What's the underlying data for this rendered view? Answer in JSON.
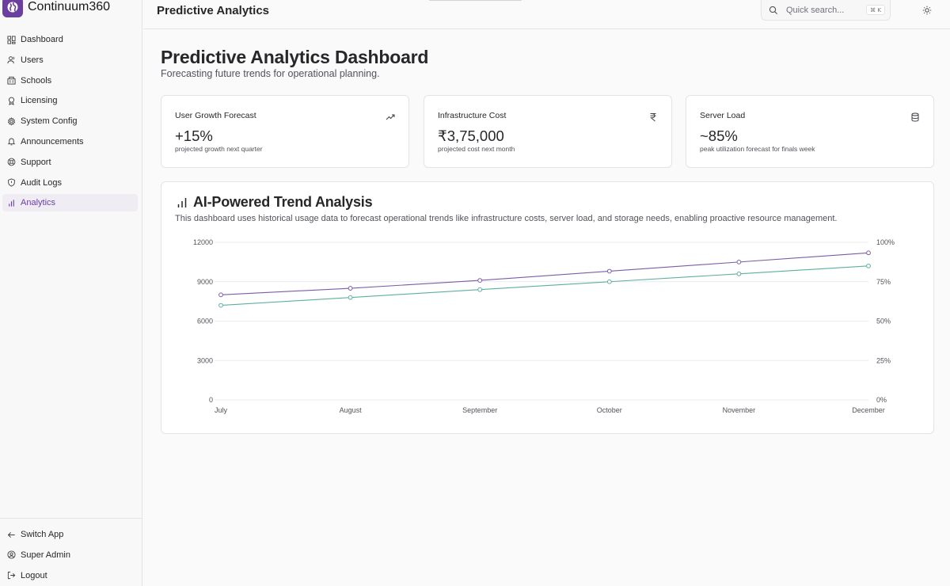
{
  "app": {
    "name": "Continuum360"
  },
  "sidebar": {
    "items": [
      {
        "label": "Dashboard",
        "icon": "grid-icon"
      },
      {
        "label": "Users",
        "icon": "user-icon"
      },
      {
        "label": "Schools",
        "icon": "building-icon"
      },
      {
        "label": "Licensing",
        "icon": "award-icon"
      },
      {
        "label": "System Config",
        "icon": "gear-icon"
      },
      {
        "label": "Announcements",
        "icon": "bell-icon"
      },
      {
        "label": "Support",
        "icon": "lifebuoy-icon"
      },
      {
        "label": "Audit Logs",
        "icon": "shield-icon"
      },
      {
        "label": "Analytics",
        "icon": "bar-chart-icon",
        "active": true
      }
    ],
    "bottom": [
      {
        "label": "Switch App",
        "icon": "arrow-left-icon"
      },
      {
        "label": "Super Admin",
        "icon": "user-circle-icon"
      },
      {
        "label": "Logout",
        "icon": "logout-icon"
      }
    ]
  },
  "header": {
    "title": "Predictive Analytics",
    "search_placeholder": "Quick search...",
    "shortcut": "⌘ K"
  },
  "main": {
    "title": "Predictive Analytics Dashboard",
    "subtitle": "Forecasting future trends for operational planning.",
    "cards": [
      {
        "title": "User Growth Forecast",
        "value": "+15%",
        "desc": "projected growth next quarter",
        "icon": "trending-up-icon"
      },
      {
        "title": "Infrastructure Cost",
        "value": "₹3,75,000",
        "desc": "projected cost next month",
        "icon": "rupee-icon"
      },
      {
        "title": "Server Load",
        "value": "~85%",
        "desc": "peak utilization forecast for finals week",
        "icon": "database-icon"
      }
    ],
    "panel": {
      "title": "AI-Powered Trend Analysis",
      "desc": "This dashboard uses historical usage data to forecast operational trends like infrastructure costs, server load, and storage needs, enabling proactive resource management."
    }
  },
  "colors": {
    "accent": "#6b3fa0",
    "series_purple": "#7c5ca8",
    "series_teal": "#5fae9e"
  },
  "chart_data": {
    "type": "line",
    "categories": [
      "July",
      "August",
      "September",
      "October",
      "November",
      "December"
    ],
    "y_left": {
      "ticks": [
        "0",
        "3000",
        "6000",
        "9000",
        "12000"
      ],
      "min": 0,
      "max": 12000
    },
    "y_right": {
      "ticks": [
        "0%",
        "25%",
        "50%",
        "75%",
        "100%"
      ],
      "min": 0,
      "max": 100
    },
    "series": [
      {
        "axis": "left",
        "color": "#7c5ca8",
        "values": [
          8000,
          8500,
          9100,
          9800,
          10500,
          11200
        ]
      },
      {
        "axis": "left",
        "color": "#5fae9e",
        "values": [
          7200,
          7800,
          8400,
          9000,
          9600,
          10200
        ]
      }
    ],
    "grid": true
  }
}
